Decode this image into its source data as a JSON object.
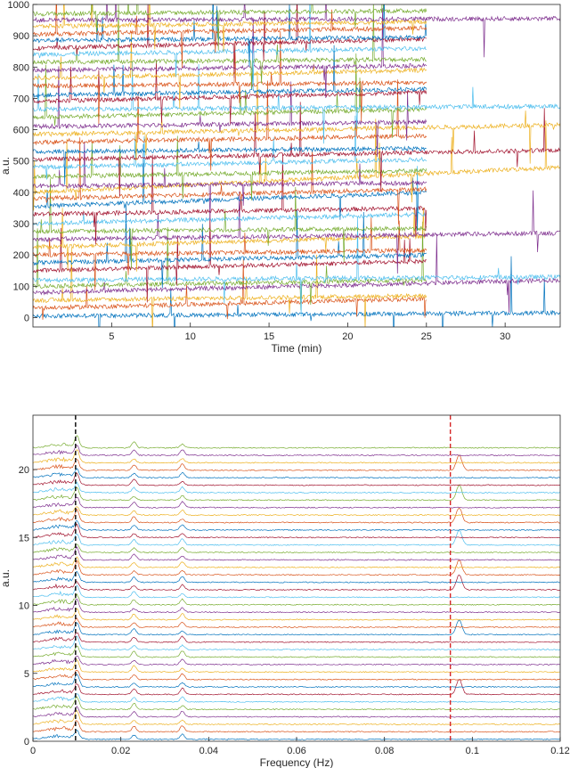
{
  "chart_data": [
    {
      "type": "line",
      "xlabel": "Time (min)",
      "ylabel": "a.u.",
      "xlim": [
        0,
        33.5
      ],
      "ylim": [
        -30,
        1000
      ],
      "xticks": [
        5,
        10,
        15,
        20,
        25,
        30
      ],
      "yticks": [
        0,
        100,
        200,
        300,
        400,
        500,
        600,
        700,
        800,
        900,
        1000
      ],
      "grid": false,
      "legend": "none",
      "series_count": 40,
      "series_baselines": [
        5,
        30,
        55,
        80,
        100,
        120,
        150,
        175,
        200,
        225,
        250,
        275,
        300,
        330,
        355,
        380,
        400,
        420,
        450,
        480,
        505,
        530,
        560,
        585,
        610,
        640,
        665,
        690,
        710,
        740,
        765,
        790,
        815,
        840,
        860,
        885,
        905,
        930,
        950,
        970
      ],
      "series_end_offsets": [
        10,
        30,
        15,
        40,
        20,
        10,
        30,
        25,
        15,
        35,
        20,
        10,
        30,
        20,
        45,
        30,
        80,
        10,
        20,
        25,
        30,
        10,
        20,
        30,
        15,
        25,
        10,
        30,
        20,
        10,
        25,
        15,
        10,
        20,
        30,
        10,
        20,
        15,
        5,
        10
      ],
      "long_series_indices": [
        0,
        3,
        5,
        10,
        16,
        20,
        23,
        26,
        38
      ]
    },
    {
      "type": "line",
      "xlabel": "Frequency (Hz)",
      "ylabel": "a.u.",
      "xlim": [
        0,
        0.12
      ],
      "ylim": [
        0,
        24
      ],
      "xticks": [
        0,
        0.02,
        0.04,
        0.06,
        0.08,
        0.1,
        0.12
      ],
      "yticks": [
        0,
        5,
        10,
        15,
        20
      ],
      "grid": false,
      "legend": "none",
      "series_count": 40,
      "series_spacing": 0.55,
      "spectral_peaks_hz": [
        0.01,
        0.023,
        0.034
      ],
      "high_peak_hz": 0.097,
      "high_peak_series": [
        6,
        14,
        20,
        22,
        26,
        29,
        32,
        36
      ],
      "reference_lines": [
        {
          "x": 0.0097,
          "color": "#000000",
          "style": "dashed"
        },
        {
          "x": 0.095,
          "color": "#d62728",
          "style": "dashed"
        }
      ]
    }
  ],
  "colors": [
    "#0072BD",
    "#D95319",
    "#EDB120",
    "#7E2F8E",
    "#77AC30",
    "#4DBEEE",
    "#A2142F"
  ]
}
